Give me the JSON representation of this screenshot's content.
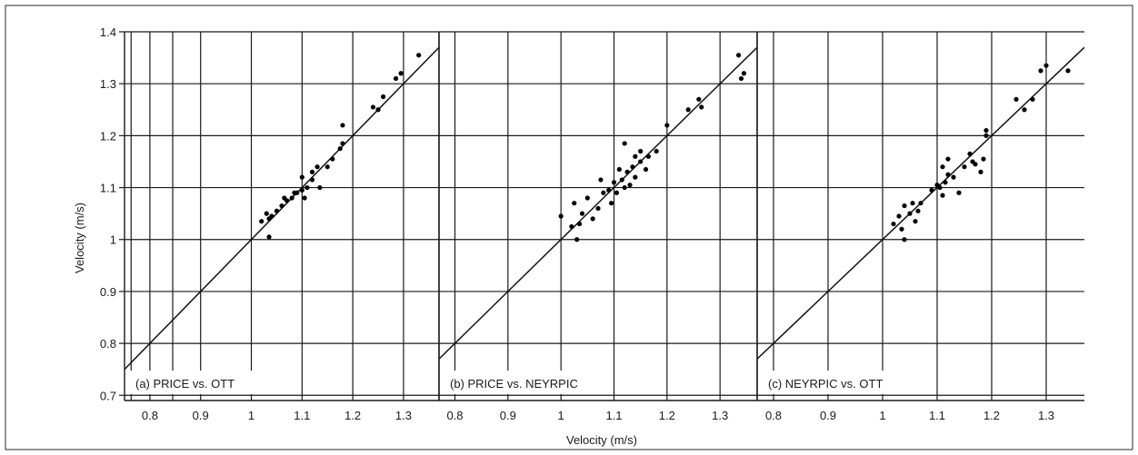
{
  "figure": {
    "ylabel": "Velocity (m/s)",
    "xlabel": "Velocity (m/s)"
  },
  "chart_data": [
    {
      "type": "scatter",
      "label": "(a) PRICE vs. OTT",
      "xlim": [
        0.75,
        1.37
      ],
      "ylim": [
        0.69,
        1.4
      ],
      "xticks": [
        "0.8",
        "0.9",
        "1",
        "1.1",
        "1.2",
        "1.3"
      ],
      "yticks": [
        "0.7",
        "0.8",
        "0.9",
        "1",
        "1.1",
        "1.2",
        "1.3",
        "1.4"
      ],
      "reference_line": "y = x",
      "grid": true,
      "points": [
        [
          1.02,
          1.035
        ],
        [
          1.03,
          1.05
        ],
        [
          1.035,
          1.04
        ],
        [
          1.04,
          1.045
        ],
        [
          1.035,
          1.005
        ],
        [
          1.05,
          1.055
        ],
        [
          1.06,
          1.065
        ],
        [
          1.07,
          1.075
        ],
        [
          1.065,
          1.08
        ],
        [
          1.08,
          1.08
        ],
        [
          1.085,
          1.09
        ],
        [
          1.09,
          1.09
        ],
        [
          1.1,
          1.095
        ],
        [
          1.105,
          1.08
        ],
        [
          1.11,
          1.1
        ],
        [
          1.1,
          1.12
        ],
        [
          1.12,
          1.115
        ],
        [
          1.12,
          1.13
        ],
        [
          1.13,
          1.14
        ],
        [
          1.135,
          1.1
        ],
        [
          1.15,
          1.14
        ],
        [
          1.16,
          1.155
        ],
        [
          1.175,
          1.175
        ],
        [
          1.18,
          1.185
        ],
        [
          1.18,
          1.22
        ],
        [
          1.24,
          1.255
        ],
        [
          1.25,
          1.25
        ],
        [
          1.26,
          1.275
        ],
        [
          1.285,
          1.31
        ],
        [
          1.295,
          1.32
        ],
        [
          1.33,
          1.355
        ]
      ]
    },
    {
      "type": "scatter",
      "label": "(b) PRICE vs. NEYRPIC",
      "xlim": [
        0.77,
        1.37
      ],
      "ylim": [
        0.69,
        1.4
      ],
      "xticks": [
        "0.8",
        "0.9",
        "1",
        "1.1",
        "1.2",
        "1.3"
      ],
      "reference_line": "y = x",
      "grid": true,
      "points": [
        [
          1.0,
          1.045
        ],
        [
          1.02,
          1.025
        ],
        [
          1.025,
          1.07
        ],
        [
          1.03,
          1.0
        ],
        [
          1.04,
          1.05
        ],
        [
          1.035,
          1.03
        ],
        [
          1.05,
          1.08
        ],
        [
          1.06,
          1.04
        ],
        [
          1.07,
          1.06
        ],
        [
          1.08,
          1.09
        ],
        [
          1.075,
          1.115
        ],
        [
          1.09,
          1.095
        ],
        [
          1.095,
          1.07
        ],
        [
          1.1,
          1.11
        ],
        [
          1.105,
          1.09
        ],
        [
          1.11,
          1.135
        ],
        [
          1.115,
          1.115
        ],
        [
          1.12,
          1.1
        ],
        [
          1.12,
          1.185
        ],
        [
          1.125,
          1.13
        ],
        [
          1.13,
          1.105
        ],
        [
          1.135,
          1.14
        ],
        [
          1.14,
          1.12
        ],
        [
          1.14,
          1.16
        ],
        [
          1.15,
          1.15
        ],
        [
          1.15,
          1.17
        ],
        [
          1.16,
          1.135
        ],
        [
          1.165,
          1.16
        ],
        [
          1.18,
          1.17
        ],
        [
          1.2,
          1.22
        ],
        [
          1.24,
          1.25
        ],
        [
          1.26,
          1.27
        ],
        [
          1.265,
          1.255
        ],
        [
          1.335,
          1.355
        ],
        [
          1.34,
          1.31
        ],
        [
          1.345,
          1.32
        ]
      ]
    },
    {
      "type": "scatter",
      "label": "(c) NEYRPIC vs. OTT",
      "xlim": [
        0.77,
        1.37
      ],
      "ylim": [
        0.69,
        1.4
      ],
      "xticks": [
        "0.8",
        "0.9",
        "1",
        "1.1",
        "1.2",
        "1.3"
      ],
      "reference_line": "y = x",
      "grid": true,
      "points": [
        [
          1.02,
          1.03
        ],
        [
          1.03,
          1.045
        ],
        [
          1.035,
          1.02
        ],
        [
          1.04,
          1.065
        ],
        [
          1.04,
          1.0
        ],
        [
          1.05,
          1.05
        ],
        [
          1.055,
          1.07
        ],
        [
          1.06,
          1.035
        ],
        [
          1.07,
          1.07
        ],
        [
          1.065,
          1.055
        ],
        [
          1.09,
          1.095
        ],
        [
          1.1,
          1.105
        ],
        [
          1.105,
          1.1
        ],
        [
          1.11,
          1.14
        ],
        [
          1.11,
          1.085
        ],
        [
          1.12,
          1.125
        ],
        [
          1.115,
          1.11
        ],
        [
          1.12,
          1.155
        ],
        [
          1.13,
          1.12
        ],
        [
          1.14,
          1.09
        ],
        [
          1.15,
          1.14
        ],
        [
          1.16,
          1.165
        ],
        [
          1.165,
          1.15
        ],
        [
          1.17,
          1.145
        ],
        [
          1.18,
          1.13
        ],
        [
          1.185,
          1.155
        ],
        [
          1.19,
          1.2
        ],
        [
          1.19,
          1.21
        ],
        [
          1.245,
          1.27
        ],
        [
          1.26,
          1.25
        ],
        [
          1.275,
          1.27
        ],
        [
          1.29,
          1.325
        ],
        [
          1.3,
          1.335
        ],
        [
          1.34,
          1.325
        ]
      ]
    }
  ]
}
